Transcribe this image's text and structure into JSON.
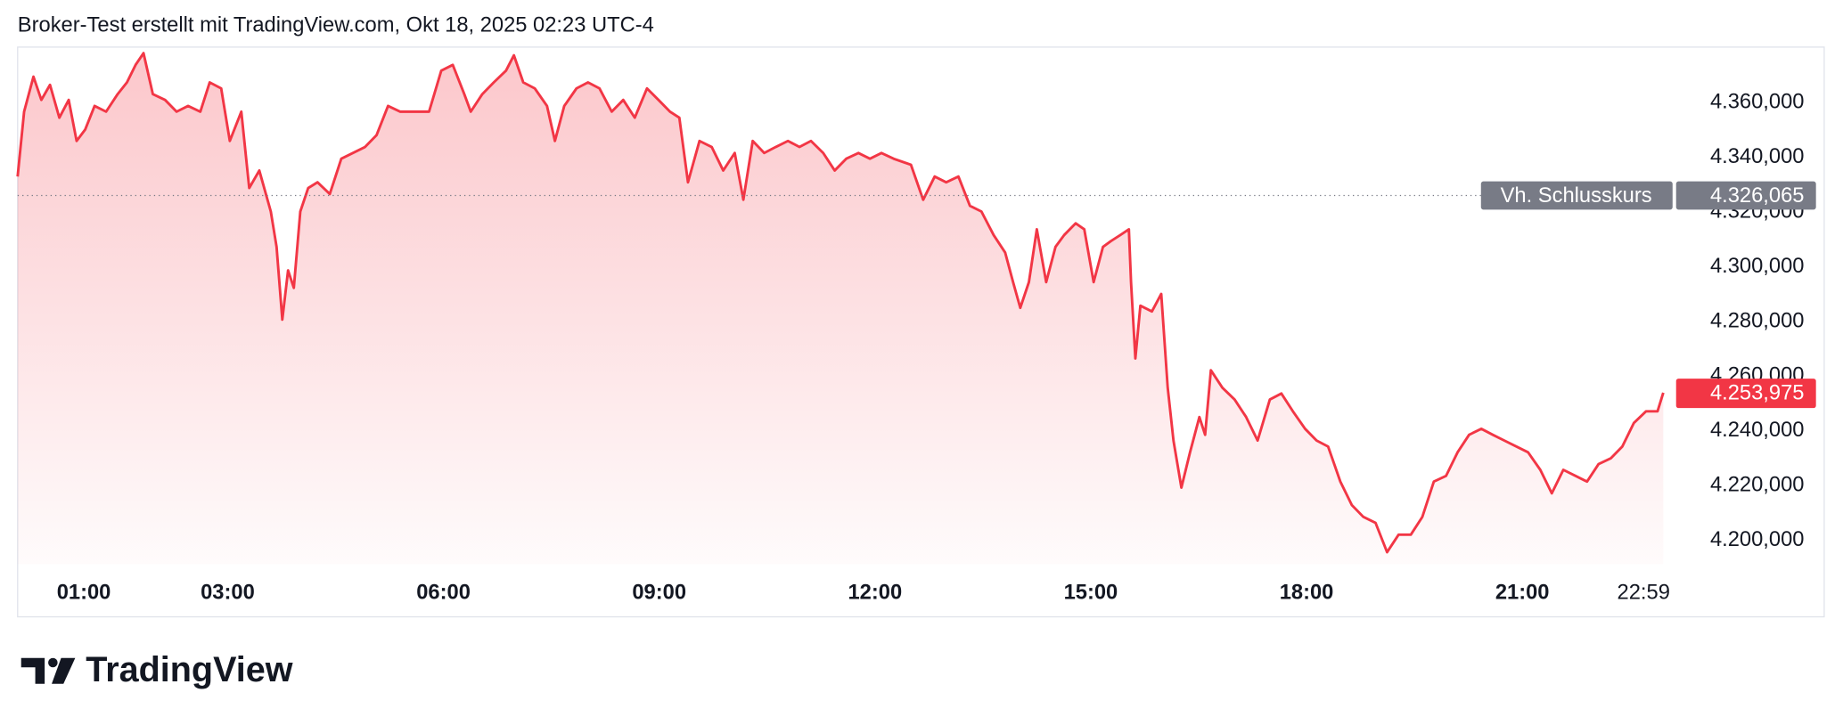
{
  "chart_data": {
    "type": "area",
    "title": "Broker-Test erstellt mit TradingView.com, Okt 18, 2025 02:23 UTC-4",
    "color": "#f23645",
    "x": [
      0.08,
      0.17,
      0.3,
      0.41,
      0.53,
      0.66,
      0.79,
      0.9,
      1.02,
      1.15,
      1.31,
      1.47,
      1.6,
      1.72,
      1.83,
      1.96,
      2.13,
      2.29,
      2.45,
      2.62,
      2.75,
      2.91,
      3.03,
      3.19,
      3.3,
      3.44,
      3.6,
      3.68,
      3.76,
      3.84,
      3.92,
      4.01,
      4.12,
      4.25,
      4.42,
      4.58,
      4.74,
      4.91,
      5.07,
      5.23,
      5.4,
      5.64,
      5.8,
      5.97,
      6.13,
      6.29,
      6.38,
      6.54,
      6.7,
      6.87,
      6.98,
      7.11,
      7.27,
      7.44,
      7.55,
      7.68,
      7.85,
      8.01,
      8.17,
      8.34,
      8.5,
      8.66,
      8.83,
      8.99,
      9.15,
      9.28,
      9.4,
      9.56,
      9.73,
      9.89,
      10.05,
      10.17,
      10.3,
      10.46,
      10.62,
      10.79,
      10.95,
      11.11,
      11.28,
      11.44,
      11.6,
      11.77,
      11.93,
      12.09,
      12.26,
      12.5,
      12.67,
      12.83,
      12.99,
      13.16,
      13.32,
      13.48,
      13.65,
      13.81,
      13.92,
      14.02,
      14.14,
      14.25,
      14.38,
      14.51,
      14.63,
      14.79,
      14.91,
      15.04,
      15.17,
      15.28,
      15.41,
      15.53,
      15.56,
      15.62,
      15.69,
      15.85,
      15.98,
      16.07,
      16.15,
      16.26,
      16.38,
      16.51,
      16.59,
      16.67,
      16.83,
      17.0,
      17.16,
      17.32,
      17.49,
      17.65,
      17.81,
      17.98,
      18.14,
      18.3,
      18.47,
      18.63,
      18.79,
      18.96,
      19.12,
      19.28,
      19.45,
      19.61,
      19.77,
      19.94,
      20.1,
      20.26,
      20.43,
      20.59,
      20.75,
      20.92,
      21.08,
      21.25,
      21.41,
      21.57,
      21.74,
      21.9,
      22.06,
      22.23,
      22.39,
      22.55,
      22.72,
      22.88,
      22.96
    ],
    "values": [
      4333.0,
      4356.7,
      4369.5,
      4361.0,
      4366.5,
      4354.5,
      4361.0,
      4346.0,
      4350.2,
      4358.8,
      4356.7,
      4363.1,
      4367.4,
      4373.8,
      4378.1,
      4363.1,
      4361.0,
      4356.7,
      4358.8,
      4356.7,
      4367.4,
      4365.2,
      4346.0,
      4356.7,
      4328.8,
      4335.2,
      4320.2,
      4307.3,
      4280.7,
      4298.7,
      4292.3,
      4320.2,
      4328.8,
      4330.9,
      4326.6,
      4339.5,
      4341.6,
      4343.8,
      4348.1,
      4358.8,
      4356.7,
      4356.7,
      4356.7,
      4371.7,
      4373.8,
      4363.1,
      4356.7,
      4363.1,
      4367.4,
      4371.7,
      4377.3,
      4367.4,
      4365.2,
      4358.8,
      4346.0,
      4358.8,
      4365.2,
      4367.4,
      4365.2,
      4356.7,
      4361.0,
      4354.5,
      4365.2,
      4361.0,
      4356.7,
      4354.5,
      4330.9,
      4346.0,
      4343.8,
      4335.2,
      4341.6,
      4324.5,
      4346.0,
      4341.6,
      4343.8,
      4346.0,
      4343.8,
      4346.0,
      4341.6,
      4335.2,
      4339.5,
      4341.6,
      4339.5,
      4341.6,
      4339.5,
      4337.3,
      4324.5,
      4333.0,
      4330.9,
      4333.0,
      4322.3,
      4320.2,
      4311.6,
      4305.2,
      4294.4,
      4285.0,
      4294.4,
      4313.7,
      4294.4,
      4307.3,
      4311.6,
      4315.9,
      4313.7,
      4294.4,
      4307.3,
      4309.4,
      4311.6,
      4313.7,
      4294.4,
      4266.5,
      4285.8,
      4283.7,
      4290.1,
      4255.8,
      4236.5,
      4219.3,
      4232.2,
      4245.1,
      4238.6,
      4262.2,
      4255.8,
      4251.5,
      4245.1,
      4236.5,
      4251.5,
      4253.7,
      4247.2,
      4240.8,
      4236.5,
      4234.3,
      4221.5,
      4212.9,
      4208.6,
      4206.4,
      4195.7,
      4202.1,
      4202.1,
      4208.6,
      4221.5,
      4223.6,
      4232.2,
      4238.6,
      4240.8,
      4238.6,
      4236.5,
      4234.3,
      4232.2,
      4225.8,
      4217.2,
      4225.8,
      4223.6,
      4221.5,
      4227.9,
      4230.0,
      4234.3,
      4242.9,
      4247.2,
      4247.2,
      4253.975
    ],
    "xlim": [
      0.08,
      23.04
    ],
    "ylim": [
      4191.4,
      4380.3
    ],
    "xticks": [
      {
        "value": 1,
        "label": "01:00"
      },
      {
        "value": 3,
        "label": "03:00"
      },
      {
        "value": 6,
        "label": "06:00"
      },
      {
        "value": 9,
        "label": "09:00"
      },
      {
        "value": 12,
        "label": "12:00"
      },
      {
        "value": 15,
        "label": "15:00"
      },
      {
        "value": 18,
        "label": "18:00"
      },
      {
        "value": 21,
        "label": "21:00"
      },
      {
        "value": 22.98,
        "label": "22:59"
      }
    ],
    "yticks": [
      {
        "value": 4200,
        "label": "4.200,000"
      },
      {
        "value": 4220,
        "label": "4.220,000"
      },
      {
        "value": 4240,
        "label": "4.240,000"
      },
      {
        "value": 4260,
        "label": "4.260,000"
      },
      {
        "value": 4280,
        "label": "4.280,000"
      },
      {
        "value": 4300,
        "label": "4.300,000"
      },
      {
        "value": 4320,
        "label": "4.320,000"
      },
      {
        "value": 4340,
        "label": "4.340,000"
      },
      {
        "value": 4360,
        "label": "4.360,000"
      }
    ],
    "previous_close": {
      "name": "Vh. Schlusskurs",
      "value": 4326.065,
      "label": "4.326,065"
    },
    "last_price": {
      "value": 4253.975,
      "label": "4.253,975"
    }
  },
  "branding": {
    "logo_text": "TradingView"
  }
}
